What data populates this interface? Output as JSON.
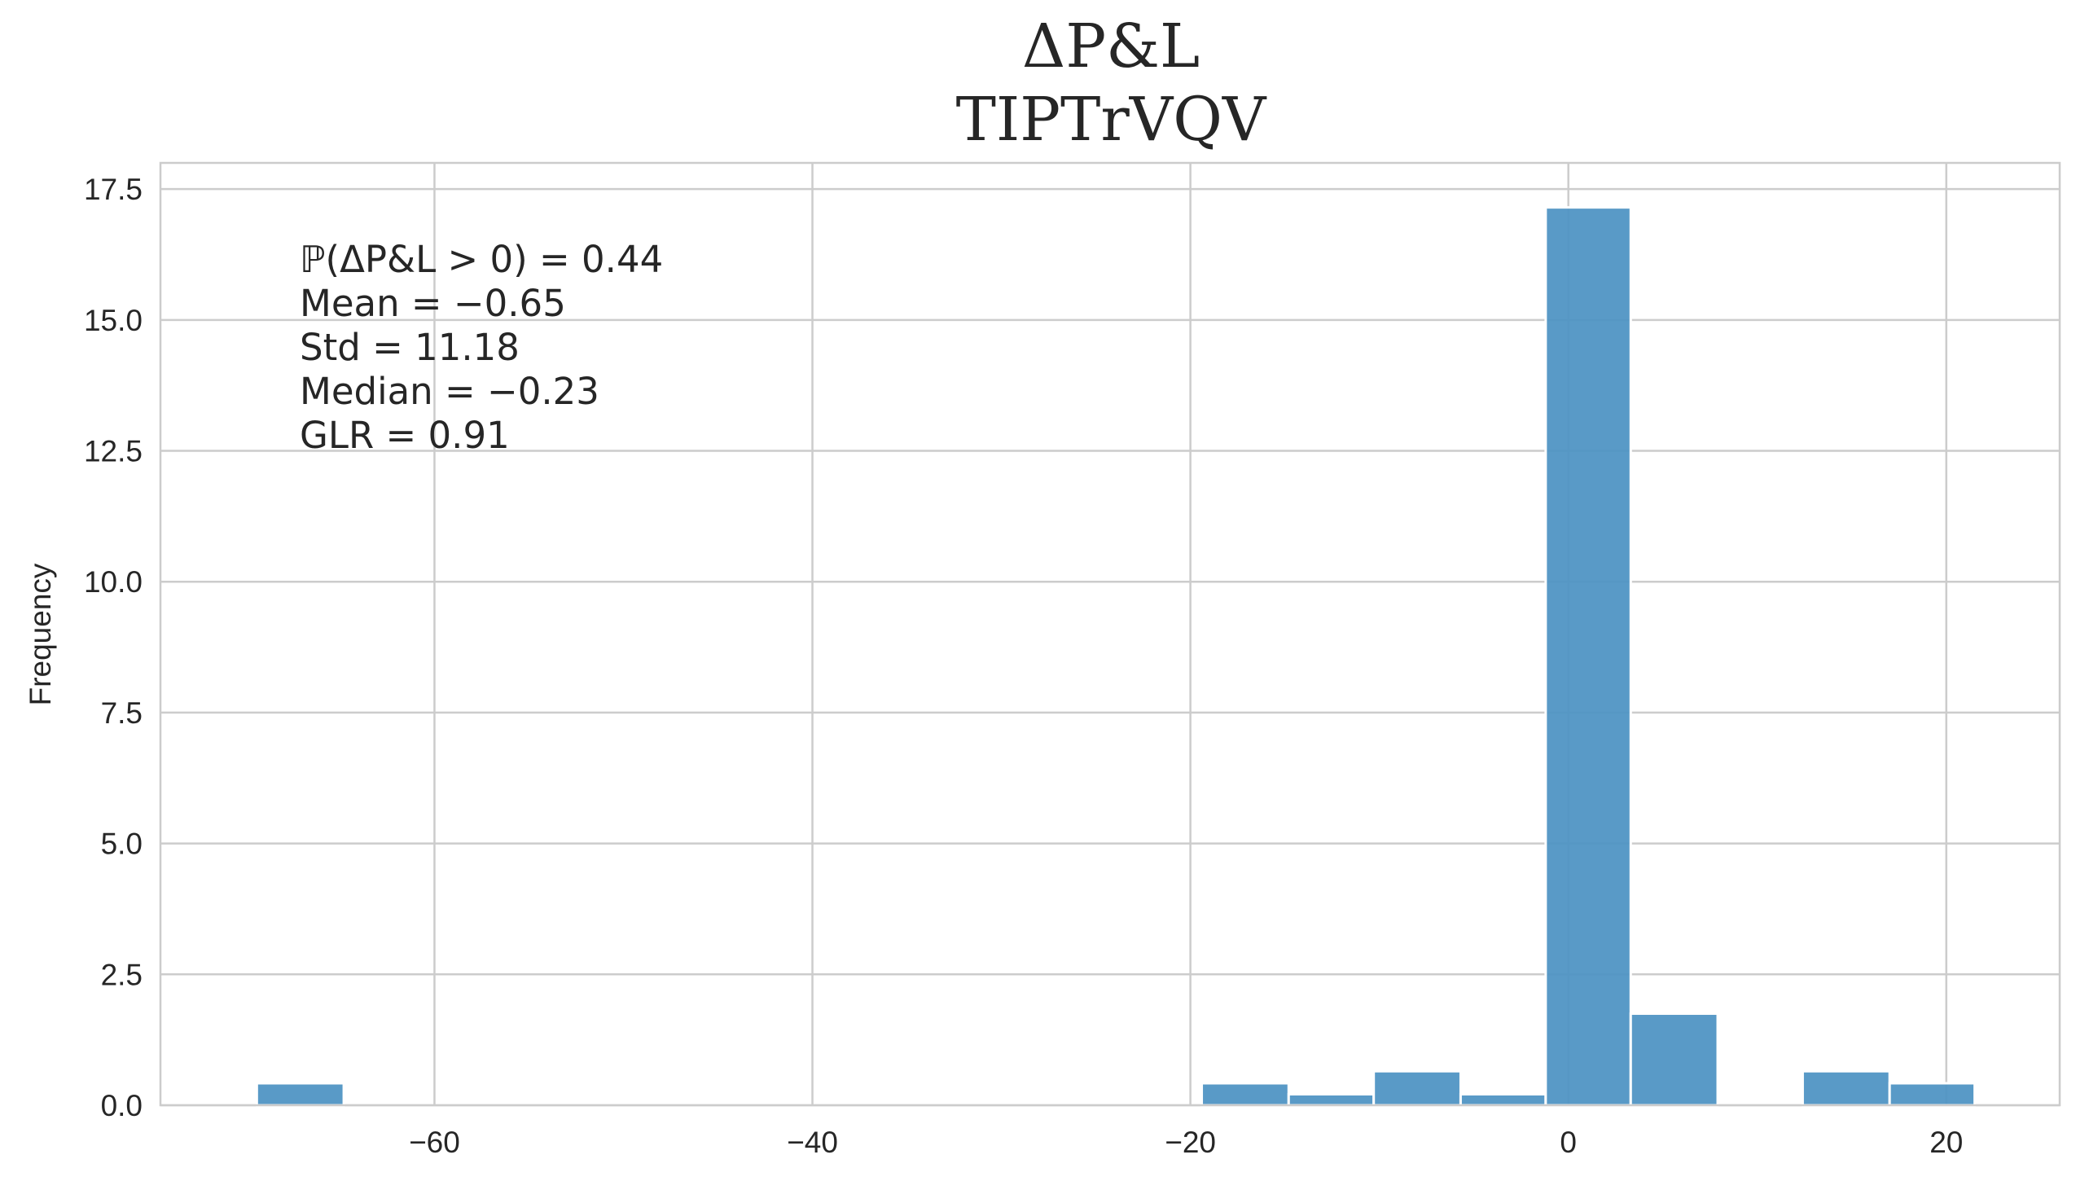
{
  "chart_data": {
    "type": "histogram",
    "title": "ΔP&L",
    "subtitle": "TIPTrVQV",
    "xlabel": "",
    "ylabel": "Frequency",
    "xlim": [
      -74.5,
      26
    ],
    "ylim": [
      0,
      18
    ],
    "xticks": [
      -60,
      -40,
      -20,
      0,
      20
    ],
    "xtick_labels": [
      "−60",
      "−40",
      "−20",
      "0",
      "20"
    ],
    "yticks": [
      0.0,
      2.5,
      5.0,
      7.5,
      10.0,
      12.5,
      15.0,
      17.5
    ],
    "ytick_labels": [
      "0.0",
      "2.5",
      "5.0",
      "7.5",
      "10.0",
      "12.5",
      "15.0",
      "17.5"
    ],
    "grid": true,
    "bar_color": "#4c92c3",
    "bins": [
      {
        "x0": -69.4,
        "x1": -64.8,
        "value": 0.42
      },
      {
        "x0": -19.4,
        "x1": -14.8,
        "value": 0.42
      },
      {
        "x0": -14.8,
        "x1": -10.3,
        "value": 0.21
      },
      {
        "x0": -10.3,
        "x1": -5.7,
        "value": 0.65
      },
      {
        "x0": -5.7,
        "x1": -1.2,
        "value": 0.21
      },
      {
        "x0": -1.2,
        "x1": 3.3,
        "value": 17.15
      },
      {
        "x0": 3.3,
        "x1": 7.9,
        "value": 1.75
      },
      {
        "x0": 12.4,
        "x1": 17.0,
        "value": 0.65
      },
      {
        "x0": 17.0,
        "x1": 21.5,
        "value": 0.42
      }
    ],
    "annotations": [
      "ℙ(ΔP&L > 0) = 0.44",
      "Mean = −0.65",
      "Std = 11.18",
      "Median = −0.23",
      " GLR = 0.91"
    ]
  }
}
